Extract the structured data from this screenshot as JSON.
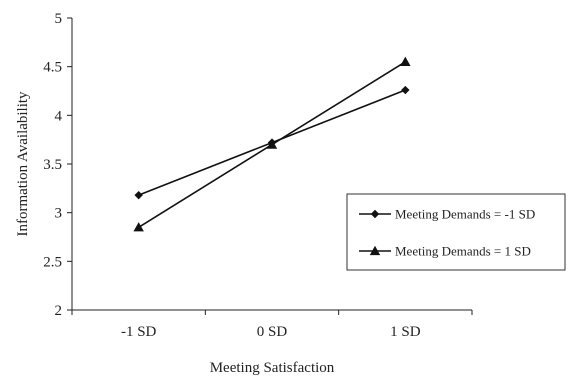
{
  "chart_data": {
    "type": "line",
    "title": "",
    "xlabel": "Meeting Satisfaction",
    "ylabel": "Information Availability",
    "categories": [
      "-1 SD",
      "0 SD",
      "1 SD"
    ],
    "ylim": [
      2,
      5
    ],
    "yticks": [
      "2",
      "2.5",
      "3",
      "3.5",
      "4",
      "4.5",
      "5"
    ],
    "grid": false,
    "legend_position": "right",
    "series": [
      {
        "name": "Meeting Demands = -1 SD",
        "marker": "diamond",
        "values": [
          3.18,
          3.72,
          4.26
        ]
      },
      {
        "name": "Meeting Demands = 1 SD",
        "marker": "triangle",
        "values": [
          2.85,
          3.7,
          4.55
        ]
      }
    ]
  }
}
